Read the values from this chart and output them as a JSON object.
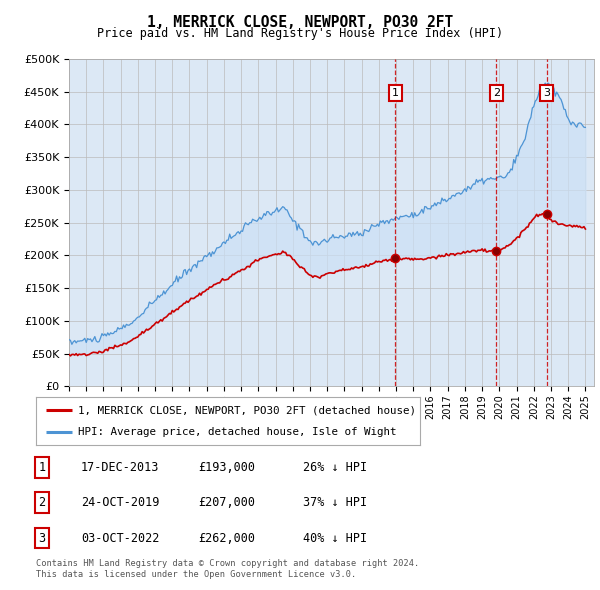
{
  "title": "1, MERRICK CLOSE, NEWPORT, PO30 2FT",
  "subtitle": "Price paid vs. HM Land Registry's House Price Index (HPI)",
  "ylabel_ticks": [
    "£0",
    "£50K",
    "£100K",
    "£150K",
    "£200K",
    "£250K",
    "£300K",
    "£350K",
    "£400K",
    "£450K",
    "£500K"
  ],
  "ytick_values": [
    0,
    50000,
    100000,
    150000,
    200000,
    250000,
    300000,
    350000,
    400000,
    450000,
    500000
  ],
  "background_color": "#dce8f5",
  "grid_color": "#bbbbbb",
  "hpi_color": "#4d94d4",
  "price_color": "#cc0000",
  "fill_color": "#cce0f5",
  "vline_color": "#cc0000",
  "transactions": [
    {
      "date_num": 2013.96,
      "price": 193000,
      "label": "1"
    },
    {
      "date_num": 2019.82,
      "price": 207000,
      "label": "2"
    },
    {
      "date_num": 2022.75,
      "price": 262000,
      "label": "3"
    }
  ],
  "legend_property": "1, MERRICK CLOSE, NEWPORT, PO30 2FT (detached house)",
  "legend_hpi": "HPI: Average price, detached house, Isle of Wight",
  "table_rows": [
    [
      "1",
      "17-DEC-2013",
      "£193,000",
      "26% ↓ HPI"
    ],
    [
      "2",
      "24-OCT-2019",
      "£207,000",
      "37% ↓ HPI"
    ],
    [
      "3",
      "03-OCT-2022",
      "£262,000",
      "40% ↓ HPI"
    ]
  ],
  "footnote1": "Contains HM Land Registry data © Crown copyright and database right 2024.",
  "footnote2": "This data is licensed under the Open Government Licence v3.0.",
  "xmin": 1995,
  "xmax": 2025.5,
  "ymin": 0,
  "ymax": 500000
}
